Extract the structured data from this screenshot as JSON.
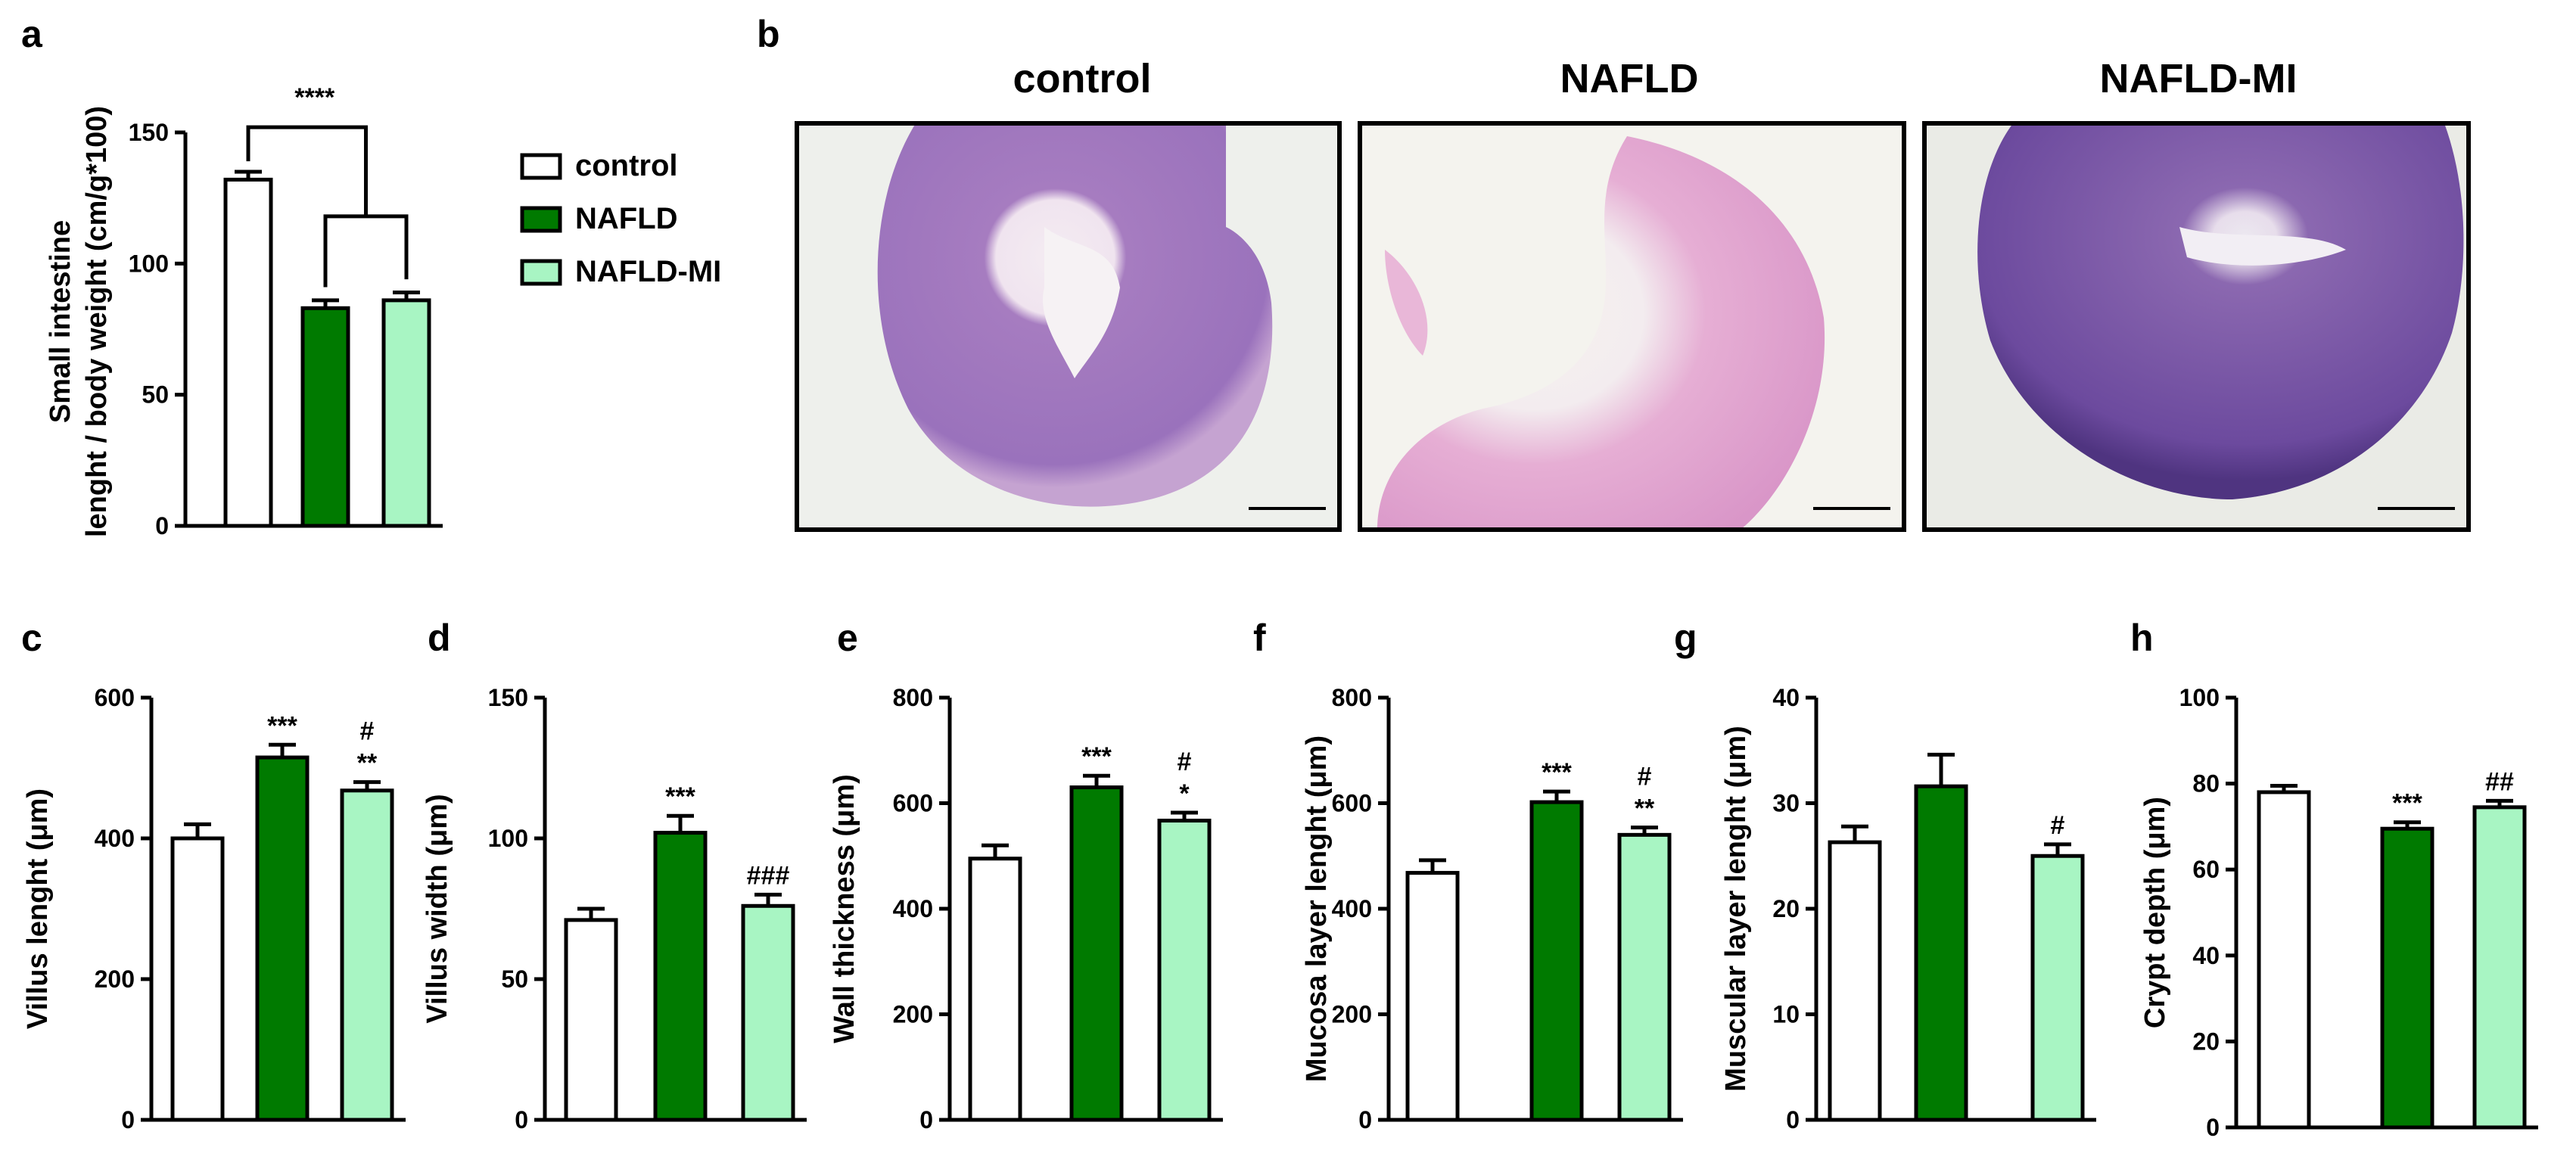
{
  "chart_data": [
    {
      "panel": "a",
      "type": "bar",
      "categories": [
        "control",
        "NAFLD",
        "NAFLD-MI"
      ],
      "values": [
        132,
        83,
        86
      ],
      "errors": [
        3,
        3,
        3
      ],
      "ylabel": "Small intestine lenght / body weight (cm/g*100)",
      "ylim": [
        0,
        150
      ],
      "yticks": [
        "0",
        "50",
        "100",
        "150"
      ],
      "annotations": [
        "****",
        "",
        ""
      ],
      "bracket_label": "****"
    },
    {
      "panel": "c",
      "type": "bar",
      "categories": [
        "control",
        "NAFLD",
        "NAFLD-MI"
      ],
      "values": [
        400,
        515,
        468
      ],
      "errors": [
        20,
        18,
        12
      ],
      "ylabel": "Villus lenght (μm)",
      "ylim": [
        0,
        600
      ],
      "yticks": [
        "0",
        "200",
        "400",
        "600"
      ],
      "annotations": [
        "",
        "***",
        "#\n**"
      ]
    },
    {
      "panel": "d",
      "type": "bar",
      "categories": [
        "control",
        "NAFLD",
        "NAFLD-MI"
      ],
      "values": [
        71,
        102,
        76
      ],
      "errors": [
        4,
        6,
        4
      ],
      "ylabel": "Villus width (μm)",
      "ylim": [
        0,
        150
      ],
      "yticks": [
        "0",
        "50",
        "100",
        "150"
      ],
      "annotations": [
        "",
        "***",
        "###"
      ]
    },
    {
      "panel": "e",
      "type": "bar",
      "categories": [
        "control",
        "NAFLD",
        "NAFLD-MI"
      ],
      "values": [
        495,
        630,
        567
      ],
      "errors": [
        25,
        22,
        15
      ],
      "ylabel": "Wall thickness (μm)",
      "ylim": [
        0,
        800
      ],
      "yticks": [
        "0",
        "200",
        "400",
        "600",
        "800"
      ],
      "annotations": [
        "",
        "***",
        "#\n*"
      ]
    },
    {
      "panel": "f",
      "type": "bar",
      "categories": [
        "control",
        "NAFLD",
        "NAFLD-MI"
      ],
      "values": [
        468,
        602,
        540
      ],
      "errors": [
        24,
        20,
        14
      ],
      "ylabel": "Mucosa layer lenght (μm)",
      "ylim": [
        0,
        800
      ],
      "yticks": [
        "0",
        "200",
        "400",
        "600",
        "800"
      ],
      "annotations": [
        "",
        "***",
        "#\n**"
      ]
    },
    {
      "panel": "g",
      "type": "bar",
      "categories": [
        "control",
        "NAFLD",
        "NAFLD-MI"
      ],
      "values": [
        26.3,
        31.6,
        25
      ],
      "errors": [
        1.5,
        3,
        1.1
      ],
      "ylabel": "Muscular layer lenght (μm)",
      "ylim": [
        0,
        40
      ],
      "yticks": [
        "0",
        "10",
        "20",
        "30",
        "40"
      ],
      "annotations": [
        "",
        "",
        "#"
      ]
    },
    {
      "panel": "h",
      "type": "bar",
      "categories": [
        "control",
        "NAFLD",
        "NAFLD-MI"
      ],
      "values": [
        78,
        69.5,
        74.5
      ],
      "errors": [
        1.5,
        1.5,
        1.5
      ],
      "ylabel": "Crypt depth (μm)",
      "ylim": [
        0,
        100
      ],
      "yticks": [
        "0",
        "20",
        "40",
        "60",
        "80",
        "100"
      ],
      "annotations": [
        "",
        "***",
        "##"
      ]
    }
  ],
  "legend": [
    "control",
    "NAFLD",
    "NAFLD-MI"
  ],
  "colors": {
    "control": "#ffffff",
    "NAFLD": "#007a00",
    "NAFLD-MI": "#a8f5c3",
    "stroke": "#000000"
  },
  "histology": {
    "panel": "b",
    "titles": [
      "control",
      "NAFLD",
      "NAFLD-MI"
    ]
  }
}
